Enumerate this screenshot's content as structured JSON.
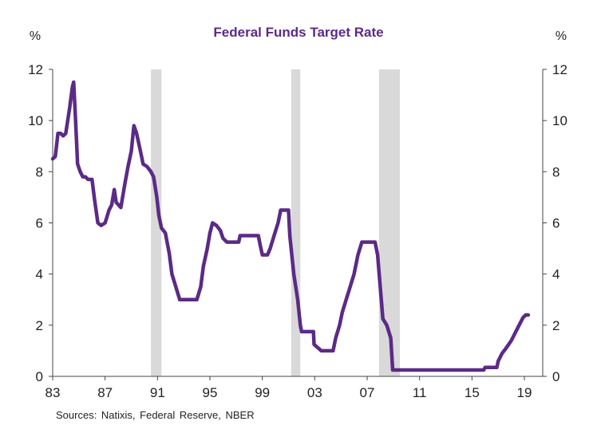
{
  "chart_data": {
    "type": "line",
    "title": "Federal Funds Target Rate",
    "left_unit": "%",
    "right_unit": "%",
    "source": "Sources:  Natixis, Federal Reserve, NBER",
    "x_ticks": [
      "83",
      "87",
      "91",
      "95",
      "99",
      "03",
      "07",
      "11",
      "15",
      "19"
    ],
    "x_tick_years": [
      1983,
      1987,
      1991,
      1995,
      1999,
      2003,
      2007,
      2011,
      2015,
      2019
    ],
    "xlim": [
      1983,
      2020.4
    ],
    "ylim": [
      0,
      12
    ],
    "y_ticks": [
      0,
      2,
      4,
      6,
      8,
      10,
      12
    ],
    "y_tick_labels": [
      "0",
      "2",
      "4",
      "6",
      "8",
      "10",
      "12"
    ],
    "recessions": [
      [
        1990.5,
        1991.3
      ],
      [
        2001.2,
        2001.9
      ],
      [
        2007.9,
        2009.5
      ]
    ],
    "colors": {
      "line": "#5b2a86",
      "recession": "#d9d9d9",
      "title": "#5b2a86",
      "axis": "#444444"
    },
    "series": [
      {
        "values": [
          [
            1983.0,
            8.5
          ],
          [
            1983.2,
            8.6
          ],
          [
            1983.4,
            9.5
          ],
          [
            1983.6,
            9.5
          ],
          [
            1983.8,
            9.4
          ],
          [
            1984.0,
            9.5
          ],
          [
            1984.3,
            10.5
          ],
          [
            1984.5,
            11.3
          ],
          [
            1984.6,
            11.5
          ],
          [
            1984.75,
            10.0
          ],
          [
            1984.9,
            8.3
          ],
          [
            1985.1,
            8.0
          ],
          [
            1985.3,
            7.8
          ],
          [
            1985.5,
            7.8
          ],
          [
            1985.7,
            7.7
          ],
          [
            1986.0,
            7.7
          ],
          [
            1986.2,
            6.9
          ],
          [
            1986.45,
            6.0
          ],
          [
            1986.7,
            5.9
          ],
          [
            1987.0,
            6.0
          ],
          [
            1987.3,
            6.5
          ],
          [
            1987.5,
            6.7
          ],
          [
            1987.7,
            7.3
          ],
          [
            1987.85,
            6.8
          ],
          [
            1988.2,
            6.6
          ],
          [
            1988.5,
            7.5
          ],
          [
            1988.75,
            8.2
          ],
          [
            1989.0,
            8.8
          ],
          [
            1989.2,
            9.8
          ],
          [
            1989.4,
            9.5
          ],
          [
            1989.7,
            8.8
          ],
          [
            1989.9,
            8.3
          ],
          [
            1990.2,
            8.2
          ],
          [
            1990.5,
            8.0
          ],
          [
            1990.7,
            7.8
          ],
          [
            1990.95,
            7.0
          ],
          [
            1991.1,
            6.3
          ],
          [
            1991.3,
            5.8
          ],
          [
            1991.6,
            5.6
          ],
          [
            1991.9,
            4.8
          ],
          [
            1992.1,
            4.0
          ],
          [
            1992.4,
            3.5
          ],
          [
            1992.7,
            3.0
          ],
          [
            1993.0,
            3.0
          ],
          [
            1994.0,
            3.0
          ],
          [
            1994.3,
            3.5
          ],
          [
            1994.5,
            4.3
          ],
          [
            1994.8,
            5.0
          ],
          [
            1995.0,
            5.6
          ],
          [
            1995.2,
            6.0
          ],
          [
            1995.5,
            5.9
          ],
          [
            1995.8,
            5.7
          ],
          [
            1996.0,
            5.4
          ],
          [
            1996.3,
            5.25
          ],
          [
            1997.2,
            5.25
          ],
          [
            1997.3,
            5.5
          ],
          [
            1998.7,
            5.5
          ],
          [
            1998.85,
            5.1
          ],
          [
            1999.0,
            4.75
          ],
          [
            1999.4,
            4.75
          ],
          [
            1999.6,
            5.0
          ],
          [
            1999.9,
            5.5
          ],
          [
            2000.2,
            6.0
          ],
          [
            2000.4,
            6.5
          ],
          [
            2001.0,
            6.5
          ],
          [
            2001.1,
            5.5
          ],
          [
            2001.4,
            4.0
          ],
          [
            2001.7,
            3.0
          ],
          [
            2001.9,
            2.0
          ],
          [
            2002.0,
            1.75
          ],
          [
            2002.9,
            1.75
          ],
          [
            2002.95,
            1.25
          ],
          [
            2003.5,
            1.0
          ],
          [
            2004.4,
            1.0
          ],
          [
            2004.6,
            1.5
          ],
          [
            2004.9,
            2.0
          ],
          [
            2005.1,
            2.5
          ],
          [
            2005.4,
            3.0
          ],
          [
            2005.7,
            3.5
          ],
          [
            2006.0,
            4.0
          ],
          [
            2006.3,
            4.75
          ],
          [
            2006.6,
            5.25
          ],
          [
            2007.6,
            5.25
          ],
          [
            2007.8,
            4.75
          ],
          [
            2008.0,
            3.5
          ],
          [
            2008.2,
            2.25
          ],
          [
            2008.5,
            2.0
          ],
          [
            2008.8,
            1.5
          ],
          [
            2008.95,
            0.25
          ],
          [
            2015.9,
            0.25
          ],
          [
            2016.0,
            0.35
          ],
          [
            2016.9,
            0.35
          ],
          [
            2017.0,
            0.6
          ],
          [
            2017.3,
            0.9
          ],
          [
            2017.6,
            1.1
          ],
          [
            2018.0,
            1.4
          ],
          [
            2018.3,
            1.7
          ],
          [
            2018.6,
            2.0
          ],
          [
            2018.9,
            2.3
          ],
          [
            2019.1,
            2.4
          ],
          [
            2019.3,
            2.4
          ]
        ]
      }
    ]
  }
}
